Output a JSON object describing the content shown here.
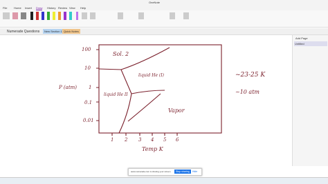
{
  "app": {
    "title": "OneNote",
    "tabs": [
      "File",
      "Home",
      "Insert",
      "Draw",
      "History",
      "Review",
      "View",
      "Help"
    ],
    "active_tab": 3
  },
  "notebook": {
    "name": "Numerade Questions",
    "sections": [
      "New Section 1",
      "Quick Notes"
    ]
  },
  "page_list": {
    "add_page": "Add Page",
    "pages": [
      "Untitled"
    ]
  },
  "drawing": {
    "y_labels": [
      "100",
      "10",
      "1",
      "0.1",
      "0.01"
    ],
    "y_axis_label": "P (atm)",
    "x_labels": [
      "1",
      "2",
      "3",
      "4",
      "5",
      "6"
    ],
    "x_axis_label": "Temp K",
    "regions": [
      "Sol. 2",
      "liquid He (I)",
      "liquid He II",
      "Vapor"
    ],
    "notes": [
      "~23-25 K",
      "~10 atm"
    ]
  },
  "share_bar": {
    "message": "www.numerade.com is sharing your screen.",
    "stop": "Stop sharing",
    "hide": "Hide"
  }
}
